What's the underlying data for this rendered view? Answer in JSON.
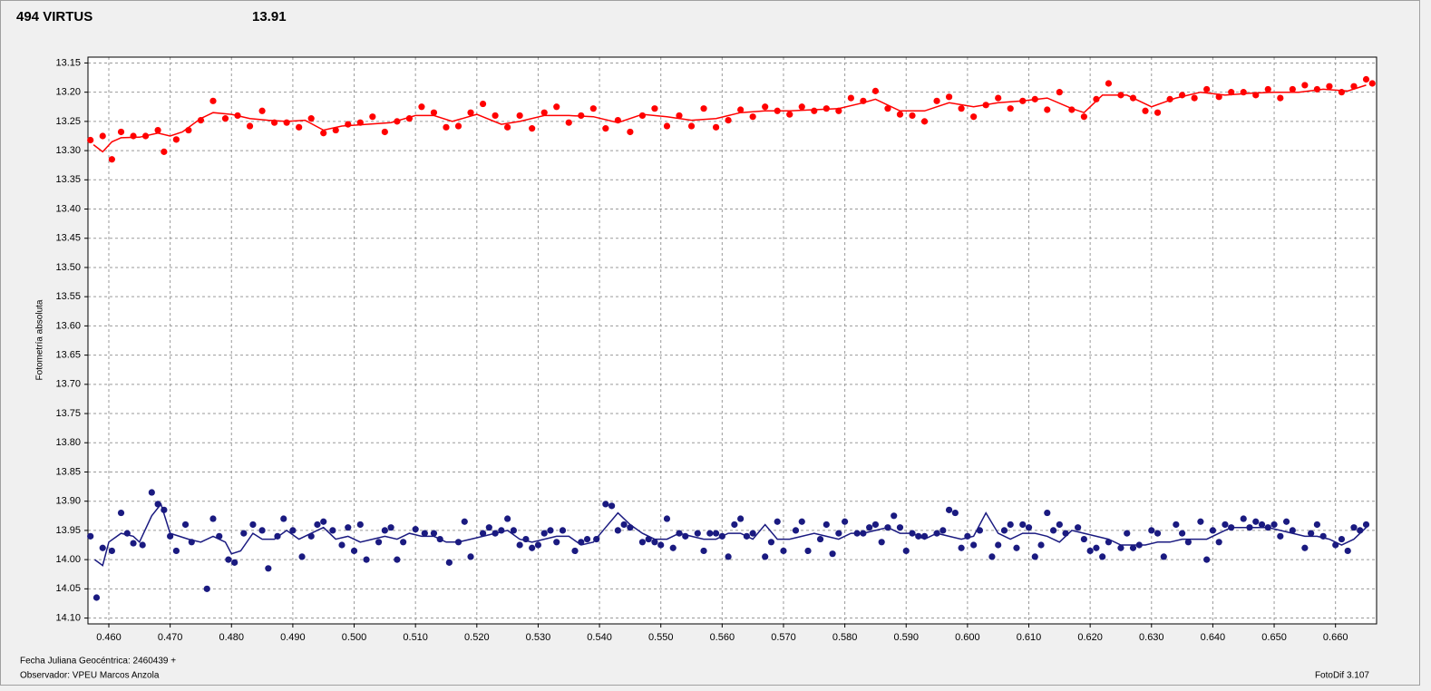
{
  "chart_data": {
    "type": "scatter",
    "title": "494 VIRTUS",
    "title_color": "#ff0000",
    "subtitle": "13.91",
    "subtitle_color": "#1a1a80",
    "y_label": "Fotometría absoluta",
    "x_label": "Fecha Juliana Geocéntrica: 2460439 +",
    "observer": "Observador: VPEU Marcos Anzola",
    "software": "FotoDif 3.107",
    "grid": true,
    "y_inverted": true,
    "xlim": [
      0.4566,
      0.6667
    ],
    "ylim": [
      13.14,
      14.11
    ],
    "xticks": [
      {
        "value": 0.46,
        "label": "0.460"
      },
      {
        "value": 0.47,
        "label": "0.470"
      },
      {
        "value": 0.48,
        "label": "0.480"
      },
      {
        "value": 0.49,
        "label": "0.490"
      },
      {
        "value": 0.5,
        "label": "0.500"
      },
      {
        "value": 0.51,
        "label": "0.510"
      },
      {
        "value": 0.52,
        "label": "0.520"
      },
      {
        "value": 0.53,
        "label": "0.530"
      },
      {
        "value": 0.54,
        "label": "0.540"
      },
      {
        "value": 0.55,
        "label": "0.550"
      },
      {
        "value": 0.56,
        "label": "0.560"
      },
      {
        "value": 0.57,
        "label": "0.570"
      },
      {
        "value": 0.58,
        "label": "0.580"
      },
      {
        "value": 0.59,
        "label": "0.590"
      },
      {
        "value": 0.6,
        "label": "0.600"
      },
      {
        "value": 0.61,
        "label": "0.610"
      },
      {
        "value": 0.62,
        "label": "0.620"
      },
      {
        "value": 0.63,
        "label": "0.630"
      },
      {
        "value": 0.64,
        "label": "0.640"
      },
      {
        "value": 0.65,
        "label": "0.650"
      },
      {
        "value": 0.66,
        "label": "0.660"
      }
    ],
    "yticks": [
      {
        "value": 13.15,
        "label": "13.15"
      },
      {
        "value": 13.2,
        "label": "13.20"
      },
      {
        "value": 13.25,
        "label": "13.25"
      },
      {
        "value": 13.3,
        "label": "13.30"
      },
      {
        "value": 13.35,
        "label": "13.35"
      },
      {
        "value": 13.4,
        "label": "13.40"
      },
      {
        "value": 13.45,
        "label": "13.45"
      },
      {
        "value": 13.5,
        "label": "13.50"
      },
      {
        "value": 13.55,
        "label": "13.55"
      },
      {
        "value": 13.6,
        "label": "13.60"
      },
      {
        "value": 13.65,
        "label": "13.65"
      },
      {
        "value": 13.7,
        "label": "13.70"
      },
      {
        "value": 13.75,
        "label": "13.75"
      },
      {
        "value": 13.8,
        "label": "13.80"
      },
      {
        "value": 13.85,
        "label": "13.85"
      },
      {
        "value": 13.9,
        "label": "13.90"
      },
      {
        "value": 13.95,
        "label": "13.95"
      },
      {
        "value": 14.0,
        "label": "14.00"
      },
      {
        "value": 14.05,
        "label": "14.05"
      },
      {
        "value": 14.1,
        "label": "14.10"
      }
    ],
    "series": [
      {
        "color": "#ff0000",
        "marker": "dot",
        "x": [
          0.457,
          0.459,
          0.4605,
          0.462,
          0.464,
          0.466,
          0.468,
          0.469,
          0.471,
          0.473,
          0.475,
          0.477,
          0.479,
          0.481,
          0.483,
          0.485,
          0.487,
          0.489,
          0.491,
          0.493,
          0.495,
          0.497,
          0.499,
          0.501,
          0.503,
          0.505,
          0.507,
          0.509,
          0.511,
          0.513,
          0.515,
          0.517,
          0.519,
          0.521,
          0.523,
          0.525,
          0.527,
          0.529,
          0.531,
          0.533,
          0.535,
          0.537,
          0.539,
          0.541,
          0.543,
          0.545,
          0.547,
          0.549,
          0.551,
          0.553,
          0.555,
          0.557,
          0.559,
          0.561,
          0.563,
          0.565,
          0.567,
          0.569,
          0.571,
          0.573,
          0.575,
          0.577,
          0.579,
          0.581,
          0.583,
          0.585,
          0.587,
          0.589,
          0.591,
          0.593,
          0.595,
          0.597,
          0.599,
          0.601,
          0.603,
          0.605,
          0.607,
          0.609,
          0.611,
          0.613,
          0.615,
          0.617,
          0.619,
          0.621,
          0.623,
          0.625,
          0.627,
          0.629,
          0.631,
          0.633,
          0.635,
          0.637,
          0.639,
          0.641,
          0.643,
          0.645,
          0.647,
          0.649,
          0.651,
          0.653,
          0.655,
          0.657,
          0.659,
          0.661,
          0.663,
          0.665,
          0.666
        ],
        "values": [
          13.282,
          13.275,
          13.315,
          13.268,
          13.275,
          13.275,
          13.265,
          13.302,
          13.281,
          13.265,
          13.248,
          13.215,
          13.245,
          13.24,
          13.258,
          13.232,
          13.252,
          13.252,
          13.26,
          13.245,
          13.27,
          13.265,
          13.255,
          13.252,
          13.242,
          13.268,
          13.25,
          13.245,
          13.225,
          13.235,
          13.26,
          13.258,
          13.235,
          13.22,
          13.24,
          13.26,
          13.24,
          13.262,
          13.235,
          13.225,
          13.252,
          13.24,
          13.228,
          13.262,
          13.248,
          13.268,
          13.24,
          13.228,
          13.258,
          13.24,
          13.258,
          13.228,
          13.26,
          13.248,
          13.23,
          13.242,
          13.225,
          13.232,
          13.238,
          13.225,
          13.232,
          13.228,
          13.232,
          13.21,
          13.215,
          13.198,
          13.228,
          13.238,
          13.24,
          13.25,
          13.215,
          13.208,
          13.228,
          13.242,
          13.222,
          13.21,
          13.228,
          13.215,
          13.212,
          13.23,
          13.2,
          13.23,
          13.242,
          13.212,
          13.185,
          13.205,
          13.21,
          13.232,
          13.235,
          13.212,
          13.205,
          13.21,
          13.195,
          13.208,
          13.2,
          13.2,
          13.205,
          13.195,
          13.21,
          13.195,
          13.188,
          13.195,
          13.19,
          13.2,
          13.19,
          13.178,
          13.185
        ]
      },
      {
        "color": "#ff0000",
        "marker": "line",
        "x": [
          0.4575,
          0.459,
          0.4605,
          0.462,
          0.465,
          0.468,
          0.47,
          0.472,
          0.475,
          0.477,
          0.48,
          0.483,
          0.486,
          0.489,
          0.492,
          0.495,
          0.498,
          0.502,
          0.506,
          0.51,
          0.513,
          0.516,
          0.52,
          0.524,
          0.527,
          0.531,
          0.535,
          0.539,
          0.543,
          0.547,
          0.551,
          0.555,
          0.559,
          0.563,
          0.567,
          0.571,
          0.575,
          0.579,
          0.583,
          0.585,
          0.589,
          0.593,
          0.597,
          0.601,
          0.605,
          0.609,
          0.613,
          0.617,
          0.619,
          0.622,
          0.626,
          0.63,
          0.634,
          0.638,
          0.642,
          0.646,
          0.65,
          0.654,
          0.658,
          0.662,
          0.665
        ],
        "values": [
          13.29,
          13.302,
          13.285,
          13.278,
          13.277,
          13.27,
          13.275,
          13.268,
          13.245,
          13.235,
          13.238,
          13.245,
          13.248,
          13.25,
          13.248,
          13.265,
          13.258,
          13.255,
          13.252,
          13.24,
          13.24,
          13.25,
          13.238,
          13.255,
          13.25,
          13.24,
          13.24,
          13.242,
          13.252,
          13.238,
          13.242,
          13.248,
          13.245,
          13.235,
          13.232,
          13.232,
          13.23,
          13.228,
          13.218,
          13.212,
          13.232,
          13.232,
          13.218,
          13.225,
          13.218,
          13.215,
          13.21,
          13.228,
          13.235,
          13.205,
          13.205,
          13.225,
          13.21,
          13.2,
          13.205,
          13.202,
          13.2,
          13.2,
          13.195,
          13.198,
          13.188
        ]
      },
      {
        "color": "#1a1a80",
        "marker": "dot",
        "x": [
          0.457,
          0.458,
          0.459,
          0.4605,
          0.462,
          0.463,
          0.464,
          0.4655,
          0.467,
          0.468,
          0.469,
          0.47,
          0.471,
          0.4725,
          0.4735,
          0.476,
          0.477,
          0.478,
          0.4795,
          0.4805,
          0.482,
          0.4835,
          0.485,
          0.486,
          0.4875,
          0.4885,
          0.49,
          0.4915,
          0.493,
          0.494,
          0.495,
          0.4965,
          0.498,
          0.499,
          0.5,
          0.501,
          0.502,
          0.504,
          0.505,
          0.506,
          0.507,
          0.508,
          0.51,
          0.5115,
          0.513,
          0.514,
          0.5155,
          0.517,
          0.518,
          0.519,
          0.521,
          0.522,
          0.523,
          0.524,
          0.525,
          0.526,
          0.527,
          0.528,
          0.529,
          0.53,
          0.531,
          0.532,
          0.533,
          0.534,
          0.536,
          0.537,
          0.538,
          0.5395,
          0.541,
          0.542,
          0.543,
          0.544,
          0.545,
          0.547,
          0.548,
          0.549,
          0.55,
          0.551,
          0.552,
          0.553,
          0.554,
          0.556,
          0.557,
          0.558,
          0.559,
          0.56,
          0.561,
          0.562,
          0.563,
          0.564,
          0.565,
          0.567,
          0.568,
          0.569,
          0.57,
          0.572,
          0.573,
          0.574,
          0.576,
          0.577,
          0.578,
          0.579,
          0.58,
          0.582,
          0.583,
          0.584,
          0.585,
          0.586,
          0.587,
          0.588,
          0.589,
          0.59,
          0.591,
          0.592,
          0.593,
          0.595,
          0.596,
          0.597,
          0.598,
          0.599,
          0.6,
          0.601,
          0.602,
          0.604,
          0.605,
          0.606,
          0.607,
          0.608,
          0.609,
          0.61,
          0.611,
          0.612,
          0.613,
          0.614,
          0.615,
          0.616,
          0.618,
          0.619,
          0.62,
          0.621,
          0.622,
          0.623,
          0.625,
          0.626,
          0.627,
          0.628,
          0.63,
          0.631,
          0.632,
          0.634,
          0.635,
          0.636,
          0.638,
          0.639,
          0.64,
          0.641,
          0.642,
          0.643,
          0.645,
          0.646,
          0.647,
          0.648,
          0.649,
          0.65,
          0.651,
          0.652,
          0.653,
          0.655,
          0.656,
          0.657,
          0.658,
          0.66,
          0.661,
          0.662,
          0.663,
          0.664,
          0.665
        ],
        "values": [
          13.96,
          14.065,
          13.98,
          13.985,
          13.92,
          13.955,
          13.972,
          13.975,
          13.885,
          13.905,
          13.915,
          13.96,
          13.985,
          13.94,
          13.97,
          14.05,
          13.93,
          13.96,
          14.0,
          14.005,
          13.955,
          13.94,
          13.95,
          14.015,
          13.96,
          13.93,
          13.95,
          13.995,
          13.96,
          13.94,
          13.935,
          13.95,
          13.975,
          13.945,
          13.985,
          13.94,
          14.0,
          13.97,
          13.95,
          13.945,
          14.0,
          13.97,
          13.948,
          13.955,
          13.955,
          13.965,
          14.005,
          13.97,
          13.935,
          13.995,
          13.955,
          13.945,
          13.955,
          13.95,
          13.93,
          13.95,
          13.975,
          13.965,
          13.98,
          13.975,
          13.955,
          13.95,
          13.97,
          13.95,
          13.985,
          13.97,
          13.965,
          13.965,
          13.905,
          13.908,
          13.95,
          13.94,
          13.945,
          13.97,
          13.965,
          13.97,
          13.975,
          13.93,
          13.98,
          13.955,
          13.96,
          13.955,
          13.985,
          13.955,
          13.955,
          13.96,
          13.995,
          13.94,
          13.93,
          13.96,
          13.955,
          13.995,
          13.97,
          13.935,
          13.985,
          13.95,
          13.935,
          13.985,
          13.965,
          13.94,
          13.99,
          13.955,
          13.935,
          13.955,
          13.955,
          13.945,
          13.94,
          13.97,
          13.945,
          13.925,
          13.945,
          13.985,
          13.955,
          13.96,
          13.96,
          13.955,
          13.95,
          13.915,
          13.92,
          13.98,
          13.96,
          13.975,
          13.95,
          13.995,
          13.975,
          13.95,
          13.94,
          13.98,
          13.94,
          13.945,
          13.995,
          13.975,
          13.92,
          13.95,
          13.94,
          13.955,
          13.945,
          13.965,
          13.985,
          13.98,
          13.995,
          13.97,
          13.98,
          13.955,
          13.98,
          13.975,
          13.95,
          13.955,
          13.995,
          13.94,
          13.955,
          13.97,
          13.935,
          14.0,
          13.95,
          13.97,
          13.94,
          13.945,
          13.93,
          13.945,
          13.935,
          13.94,
          13.945,
          13.94,
          13.96,
          13.935,
          13.95,
          13.98,
          13.955,
          13.94,
          13.96,
          13.975,
          13.965,
          13.985,
          13.945,
          13.95,
          13.94
        ]
      },
      {
        "color": "#1a1a80",
        "marker": "line",
        "x": [
          0.4577,
          0.459,
          0.46,
          0.462,
          0.464,
          0.465,
          0.467,
          0.4685,
          0.47,
          0.4715,
          0.473,
          0.475,
          0.477,
          0.479,
          0.48,
          0.4815,
          0.4835,
          0.485,
          0.487,
          0.489,
          0.491,
          0.493,
          0.495,
          0.497,
          0.499,
          0.501,
          0.503,
          0.505,
          0.507,
          0.509,
          0.511,
          0.513,
          0.515,
          0.517,
          0.519,
          0.521,
          0.523,
          0.525,
          0.527,
          0.529,
          0.531,
          0.533,
          0.535,
          0.537,
          0.539,
          0.541,
          0.543,
          0.545,
          0.547,
          0.549,
          0.551,
          0.553,
          0.555,
          0.557,
          0.559,
          0.561,
          0.563,
          0.565,
          0.567,
          0.569,
          0.571,
          0.573,
          0.575,
          0.577,
          0.579,
          0.581,
          0.583,
          0.585,
          0.587,
          0.589,
          0.591,
          0.593,
          0.595,
          0.597,
          0.599,
          0.601,
          0.603,
          0.605,
          0.607,
          0.609,
          0.611,
          0.613,
          0.615,
          0.617,
          0.619,
          0.621,
          0.623,
          0.625,
          0.627,
          0.629,
          0.631,
          0.633,
          0.635,
          0.637,
          0.639,
          0.641,
          0.643,
          0.645,
          0.647,
          0.649,
          0.651,
          0.653,
          0.655,
          0.657,
          0.659,
          0.661,
          0.663,
          0.665
        ],
        "values": [
          14.0,
          14.01,
          13.97,
          13.955,
          13.96,
          13.97,
          13.925,
          13.905,
          13.955,
          13.96,
          13.965,
          13.97,
          13.96,
          13.97,
          13.99,
          13.985,
          13.955,
          13.965,
          13.965,
          13.95,
          13.965,
          13.955,
          13.945,
          13.965,
          13.96,
          13.97,
          13.965,
          13.96,
          13.965,
          13.955,
          13.96,
          13.96,
          13.97,
          13.97,
          13.965,
          13.96,
          13.955,
          13.95,
          13.965,
          13.97,
          13.965,
          13.96,
          13.96,
          13.975,
          13.97,
          13.945,
          13.92,
          13.94,
          13.955,
          13.965,
          13.965,
          13.955,
          13.96,
          13.965,
          13.965,
          13.955,
          13.955,
          13.965,
          13.94,
          13.965,
          13.965,
          13.96,
          13.955,
          13.96,
          13.965,
          13.955,
          13.955,
          13.95,
          13.945,
          13.955,
          13.955,
          13.965,
          13.955,
          13.96,
          13.965,
          13.96,
          13.92,
          13.955,
          13.965,
          13.955,
          13.955,
          13.96,
          13.97,
          13.95,
          13.955,
          13.96,
          13.965,
          13.975,
          13.975,
          13.975,
          13.97,
          13.97,
          13.965,
          13.965,
          13.965,
          13.955,
          13.945,
          13.945,
          13.945,
          13.945,
          13.95,
          13.955,
          13.96,
          13.96,
          13.965,
          13.975,
          13.965,
          13.945
        ]
      }
    ]
  }
}
